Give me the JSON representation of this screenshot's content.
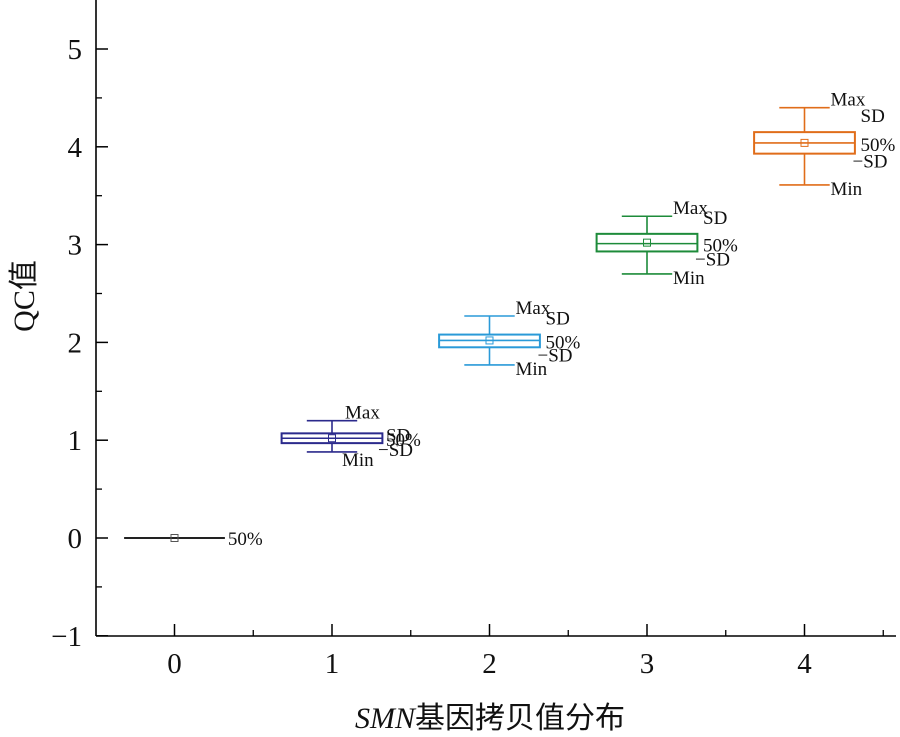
{
  "chart_data": {
    "type": "box",
    "xlabel_italic": "SMN",
    "xlabel_rest": "基因拷贝值分布",
    "ylabel": "QC值",
    "xlim": [
      -0.5,
      4.5
    ],
    "ylim": [
      -1,
      5.5
    ],
    "x_ticks": [
      0,
      1,
      2,
      3,
      4
    ],
    "y_ticks": [
      -1,
      0,
      1,
      2,
      3,
      4,
      5
    ],
    "y_tick_labels": [
      "−1",
      "0",
      "1",
      "2",
      "3",
      "4",
      "5"
    ],
    "annotation_labels": {
      "max": "Max",
      "plus_sd": "SD",
      "median": "50%",
      "minus_sd": "−SD",
      "min": "Min"
    },
    "boxes": [
      {
        "x": 0,
        "color": "#222222",
        "median": 0,
        "mean": 0
      },
      {
        "x": 1,
        "color": "#2b2a8c",
        "min": 0.88,
        "q_low": 0.97,
        "median": 1.02,
        "mean": 1.02,
        "q_high": 1.07,
        "max": 1.2
      },
      {
        "x": 2,
        "color": "#2a9ad8",
        "min": 1.77,
        "q_low": 1.95,
        "median": 2.02,
        "mean": 2.02,
        "q_high": 2.08,
        "max": 2.27
      },
      {
        "x": 3,
        "color": "#1d8b3a",
        "min": 2.7,
        "q_low": 2.93,
        "median": 3.01,
        "mean": 3.02,
        "q_high": 3.11,
        "max": 3.29
      },
      {
        "x": 4,
        "color": "#e06d1a",
        "min": 3.61,
        "q_low": 3.93,
        "median": 4.04,
        "mean": 4.04,
        "q_high": 4.15,
        "max": 4.4
      }
    ]
  }
}
